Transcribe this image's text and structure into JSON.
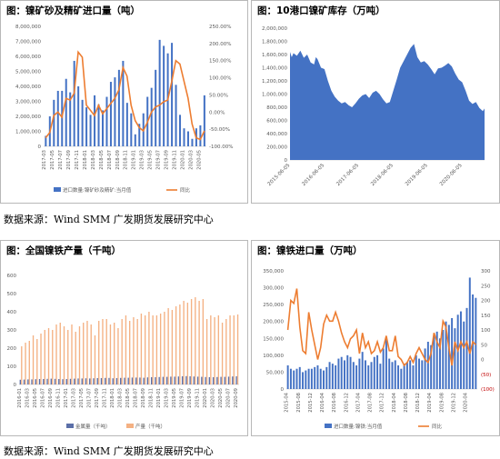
{
  "source_note": "数据来源：Wind SMM 广发期货发展研究中心",
  "chart_data": [
    {
      "id": "c1",
      "type": "bar+line",
      "title": "图：镍矿砂及精矿进口量（吨）",
      "categories": [
        "2017-03",
        "2017-04",
        "2017-05",
        "2017-06",
        "2017-07",
        "2017-08",
        "2017-09",
        "2017-10",
        "2017-11",
        "2017-12",
        "2018-01",
        "2018-02",
        "2018-03",
        "2018-04",
        "2018-05",
        "2018-06",
        "2018-07",
        "2018-08",
        "2018-09",
        "2018-10",
        "2018-11",
        "2018-12",
        "2019-01",
        "2019-02",
        "2019-03",
        "2019-04",
        "2019-05",
        "2019-06",
        "2019-07",
        "2019-08",
        "2019-09",
        "2019-10",
        "2019-11",
        "2019-12",
        "2020-01",
        "2020-02",
        "2020-03",
        "2020-04",
        "2020-05",
        "2020-06"
      ],
      "tick_labels": [
        "2017-03",
        "2017-05",
        "2017-07",
        "2017-09",
        "2017-11",
        "2018-01",
        "2018-03",
        "2018-05",
        "2018-07",
        "2018-09",
        "2018-11",
        "2019-01",
        "2019-03",
        "2019-05",
        "2019-07",
        "2019-09",
        "2019-11",
        "2020-01",
        "2020-03",
        "2020-05"
      ],
      "left_axis": {
        "min": 0,
        "max": 8000000,
        "ticks": [
          "0",
          "1,000,000",
          "2,000,000",
          "3,000,000",
          "4,000,000",
          "5,000,000",
          "6,000,000",
          "7,000,000",
          "8,000,000"
        ]
      },
      "right_axis": {
        "min": -100,
        "max": 250,
        "ticks": [
          "-100.00%",
          "-50.00%",
          "0.00%",
          "50.00%",
          "100.00%",
          "150.00%",
          "200.00%",
          "250.00%"
        ]
      },
      "series": [
        {
          "name": "进口数量:镍矿砂及精矿:当月值",
          "axis": "left",
          "kind": "bar",
          "color": "#4472c4",
          "values": [
            700000,
            2000000,
            3100000,
            3700000,
            3700000,
            4500000,
            3600000,
            5700000,
            4000000,
            3100000,
            2600000,
            2100000,
            3400000,
            2800000,
            2400000,
            3300000,
            4300000,
            4600000,
            5100000,
            5700000,
            2900000,
            2200000,
            800000,
            1500000,
            2200000,
            3300000,
            3900000,
            5100000,
            7100000,
            6700000,
            6200000,
            6900000,
            4100000,
            2100000,
            1200000,
            1000000,
            500000,
            1200000,
            1400000,
            3400000
          ]
        },
        {
          "name": "同比",
          "axis": "right",
          "kind": "line",
          "color": "#ed7d31",
          "values": [
            -75,
            -60,
            -10,
            0,
            -15,
            40,
            35,
            55,
            175,
            160,
            20,
            5,
            -10,
            20,
            -5,
            10,
            25,
            40,
            65,
            130,
            105,
            20,
            -25,
            -45,
            -55,
            -30,
            0,
            15,
            20,
            30,
            35,
            90,
            150,
            140,
            90,
            40,
            -35,
            -75,
            -80,
            -55
          ]
        }
      ]
    },
    {
      "id": "c2",
      "type": "area",
      "title": "图：10港口镍矿库存（万吨）",
      "tick_labels": [
        "2015-06-05",
        "2016-06-05",
        "2017-06-05",
        "2018-06-05",
        "2019-06-05",
        "2020-06-05"
      ],
      "y_axis": {
        "min": 0,
        "max": 2000,
        "ticks": [
          "0",
          "200,000",
          "400,000",
          "600,000",
          "800,000",
          "1,000,000",
          "1,200,000",
          "1,400,000",
          "1,600,000",
          "1,800,000",
          "2,000,000"
        ]
      },
      "x": [
        0,
        0.05,
        0.1,
        0.2,
        0.3,
        0.4,
        0.5,
        0.6,
        0.7,
        0.75,
        0.8,
        0.9,
        1,
        1.1,
        1.2,
        1.3,
        1.4,
        1.5,
        1.6,
        1.7,
        1.8,
        1.9,
        2,
        2.1,
        2.2,
        2.3,
        2.4,
        2.5,
        2.6,
        2.7,
        2.8,
        2.9,
        3,
        3.1,
        3.2,
        3.3,
        3.4,
        3.5,
        3.6,
        3.7,
        3.8,
        3.9,
        4,
        4.1,
        4.2,
        4.3,
        4.4,
        4.5,
        4.6,
        4.7,
        4.8,
        4.9,
        5,
        5.1,
        5.2,
        5.3,
        5.4,
        5.5,
        5.6,
        5.65
      ],
      "values": [
        1640,
        1560,
        1620,
        1580,
        1660,
        1550,
        1600,
        1480,
        1450,
        1560,
        1530,
        1400,
        1380,
        1200,
        1050,
        960,
        900,
        860,
        880,
        830,
        800,
        860,
        930,
        980,
        1000,
        940,
        1020,
        1050,
        1000,
        920,
        860,
        880,
        1050,
        1220,
        1400,
        1500,
        1600,
        1700,
        1760,
        1560,
        1480,
        1500,
        1450,
        1380,
        1300,
        1390,
        1400,
        1430,
        1470,
        1420,
        1310,
        1220,
        1180,
        1050,
        900,
        850,
        880,
        790,
        740,
        780
      ],
      "color": "#4472c4"
    },
    {
      "id": "c3",
      "type": "bar",
      "title": "图：全国镍铁产量（千吨）",
      "categories_count": 57,
      "tick_labels": [
        "2016-01",
        "2016-03",
        "2016-05",
        "2016-07",
        "2016-09",
        "2016-11",
        "2017-01",
        "2017-03",
        "2017-05",
        "2017-07",
        "2017-09",
        "2017-11",
        "2018-01",
        "2018-03",
        "2018-05",
        "2018-07",
        "2018-09",
        "2018-11",
        "2019-01",
        "2019-03",
        "2019-05",
        "2019-07",
        "2019-09",
        "2019-11",
        "2020-01",
        "2020-03",
        "2020-05",
        "2020-07",
        "2020-09"
      ],
      "y_axis": {
        "min": 0,
        "max": 600,
        "ticks": [
          "0",
          "100",
          "200",
          "300",
          "400",
          "500",
          "600"
        ]
      },
      "series": [
        {
          "name": "金属量（千吨）",
          "color": "#5b6fa8",
          "values": [
            26,
            27,
            28,
            28,
            29,
            30,
            30,
            31,
            32,
            31,
            30,
            29,
            30,
            31,
            32,
            33,
            33,
            34,
            33,
            34,
            35,
            35,
            36,
            36,
            34,
            35,
            36,
            37,
            37,
            38,
            38,
            38,
            37,
            39,
            40,
            40,
            41,
            42,
            42,
            43,
            43,
            44,
            45,
            46,
            45,
            44,
            43,
            42,
            41,
            40,
            40,
            41,
            42,
            42,
            43,
            44,
            45
          ]
        },
        {
          "name": "产量（千吨）",
          "color": "#f4b183",
          "values": [
            210,
            230,
            240,
            270,
            250,
            280,
            300,
            310,
            300,
            330,
            340,
            320,
            300,
            330,
            290,
            320,
            340,
            350,
            330,
            270,
            350,
            360,
            360,
            330,
            340,
            310,
            360,
            380,
            350,
            370,
            360,
            390,
            380,
            400,
            380,
            380,
            390,
            400,
            420,
            410,
            430,
            440,
            460,
            450,
            470,
            480,
            460,
            470,
            360,
            380,
            370,
            380,
            340,
            360,
            380,
            380,
            385
          ]
        }
      ]
    },
    {
      "id": "c4",
      "type": "bar+line",
      "title": "图：镍铁进口量（万吨）",
      "categories_count": 64,
      "tick_labels": [
        "2015-04",
        "2015-08",
        "2015-12",
        "2016-04",
        "2016-08",
        "2016-12",
        "2017-04",
        "2017-08",
        "2017-12",
        "2018-04",
        "2018-08",
        "2018-12",
        "2019-04",
        "2019-08",
        "2019-12",
        "2020-04"
      ],
      "left_axis": {
        "min": 0,
        "max": 350000,
        "ticks": [
          "0",
          "50,000",
          "100,000",
          "150,000",
          "200,000",
          "250,000",
          "300,000",
          "350,000"
        ]
      },
      "right_axis": {
        "min": -100,
        "max": 300,
        "ticks": [
          "(100)",
          "(50)",
          "0",
          "50",
          "100",
          "150",
          "200",
          "250",
          "300"
        ]
      },
      "series": [
        {
          "name": "进口数量:镍铁:当月值",
          "axis": "left",
          "kind": "bar",
          "color": "#4472c4",
          "values": [
            70000,
            60000,
            55000,
            60000,
            65000,
            50000,
            55000,
            60000,
            60000,
            65000,
            70000,
            60000,
            55000,
            65000,
            80000,
            75000,
            70000,
            90000,
            95000,
            85000,
            100000,
            95000,
            80000,
            70000,
            90000,
            110000,
            85000,
            70000,
            80000,
            95000,
            100000,
            75000,
            120000,
            150000,
            90000,
            80000,
            85000,
            70000,
            60000,
            75000,
            80000,
            85000,
            70000,
            100000,
            90000,
            85000,
            120000,
            140000,
            130000,
            160000,
            170000,
            150000,
            175000,
            200000,
            190000,
            210000,
            180000,
            220000,
            230000,
            200000,
            240000,
            330000,
            280000,
            270000
          ]
        },
        {
          "name": "同比",
          "axis": "right",
          "kind": "line",
          "color": "#ed7d31",
          "values": [
            100,
            200,
            190,
            240,
            110,
            30,
            20,
            160,
            100,
            50,
            0,
            40,
            120,
            150,
            130,
            130,
            160,
            130,
            90,
            60,
            40,
            70,
            80,
            100,
            20,
            90,
            40,
            60,
            20,
            30,
            60,
            25,
            40,
            80,
            30,
            30,
            80,
            10,
            0,
            -20,
            -10,
            10,
            -10,
            20,
            40,
            20,
            0,
            -10,
            20,
            90,
            60,
            40,
            130,
            110,
            40,
            -20,
            60,
            30,
            60,
            40,
            60,
            20,
            60,
            50
          ]
        }
      ]
    }
  ]
}
